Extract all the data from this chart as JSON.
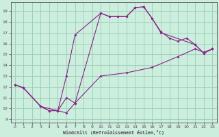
{
  "xlabel": "Windchill (Refroidissement éolien,°C)",
  "bg_color": "#cceedd",
  "grid_color": "#99ccbb",
  "line_color": "#882288",
  "border_color": "#554455",
  "xlim": [
    -0.5,
    23.5
  ],
  "ylim": [
    8.7,
    19.8
  ],
  "yticks": [
    9,
    10,
    11,
    12,
    13,
    14,
    15,
    16,
    17,
    18,
    19
  ],
  "xticks": [
    0,
    1,
    2,
    3,
    4,
    5,
    6,
    7,
    8,
    9,
    10,
    11,
    12,
    13,
    14,
    15,
    16,
    17,
    18,
    19,
    20,
    21,
    22,
    23
  ],
  "line1_x": [
    0,
    1,
    3,
    4,
    5,
    6,
    7,
    10,
    11,
    12,
    13,
    14,
    15,
    16,
    17,
    21,
    22,
    23
  ],
  "line1_y": [
    12.2,
    11.9,
    10.2,
    9.8,
    9.8,
    9.6,
    10.5,
    18.8,
    18.5,
    18.5,
    18.5,
    19.3,
    19.4,
    18.3,
    17.0,
    15.9,
    15.1,
    15.5
  ],
  "line2_x": [
    0,
    1,
    3,
    5,
    6,
    7,
    10,
    11,
    12,
    13,
    14,
    15,
    16,
    17,
    18,
    19,
    20,
    21,
    22,
    23
  ],
  "line2_y": [
    12.2,
    11.9,
    10.2,
    9.8,
    13.0,
    16.8,
    18.8,
    18.5,
    18.5,
    18.5,
    19.3,
    19.4,
    18.3,
    17.1,
    16.5,
    16.2,
    16.5,
    15.9,
    15.1,
    15.5
  ],
  "line3_x": [
    0,
    1,
    3,
    4,
    5,
    6,
    7,
    10,
    13,
    16,
    19,
    21,
    22,
    23
  ],
  "line3_y": [
    12.2,
    11.9,
    10.2,
    9.8,
    9.8,
    11.0,
    10.5,
    13.0,
    13.3,
    13.8,
    14.8,
    15.5,
    15.2,
    15.5
  ]
}
